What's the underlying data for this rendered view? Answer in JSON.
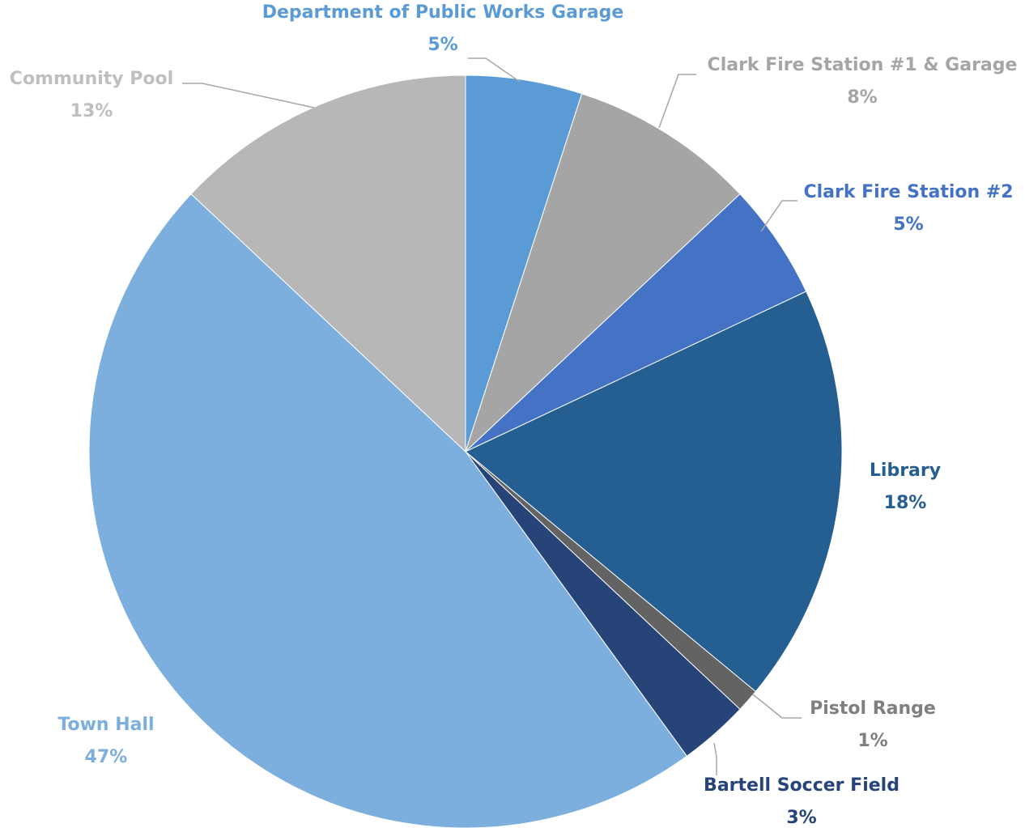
{
  "chart_data": {
    "type": "pie",
    "categories": [
      "Department of Public Works Garage",
      "Clark Fire Station #1 & Garage",
      "Clark Fire Station #2",
      "Library",
      "Pistol Range",
      "Bartell Soccer Field",
      "Town Hall",
      "Community Pool"
    ],
    "values": [
      5,
      8,
      5,
      18,
      1,
      3,
      47,
      13
    ],
    "value_labels": [
      "5%",
      "8%",
      "5%",
      "18%",
      "1%",
      "3%",
      "47%",
      "13%"
    ],
    "colors": [
      "#5b9bd5",
      "#a5a5a5",
      "#4472c4",
      "#255e91",
      "#636363",
      "#264478",
      "#7cafdd",
      "#b7b7b7"
    ]
  }
}
